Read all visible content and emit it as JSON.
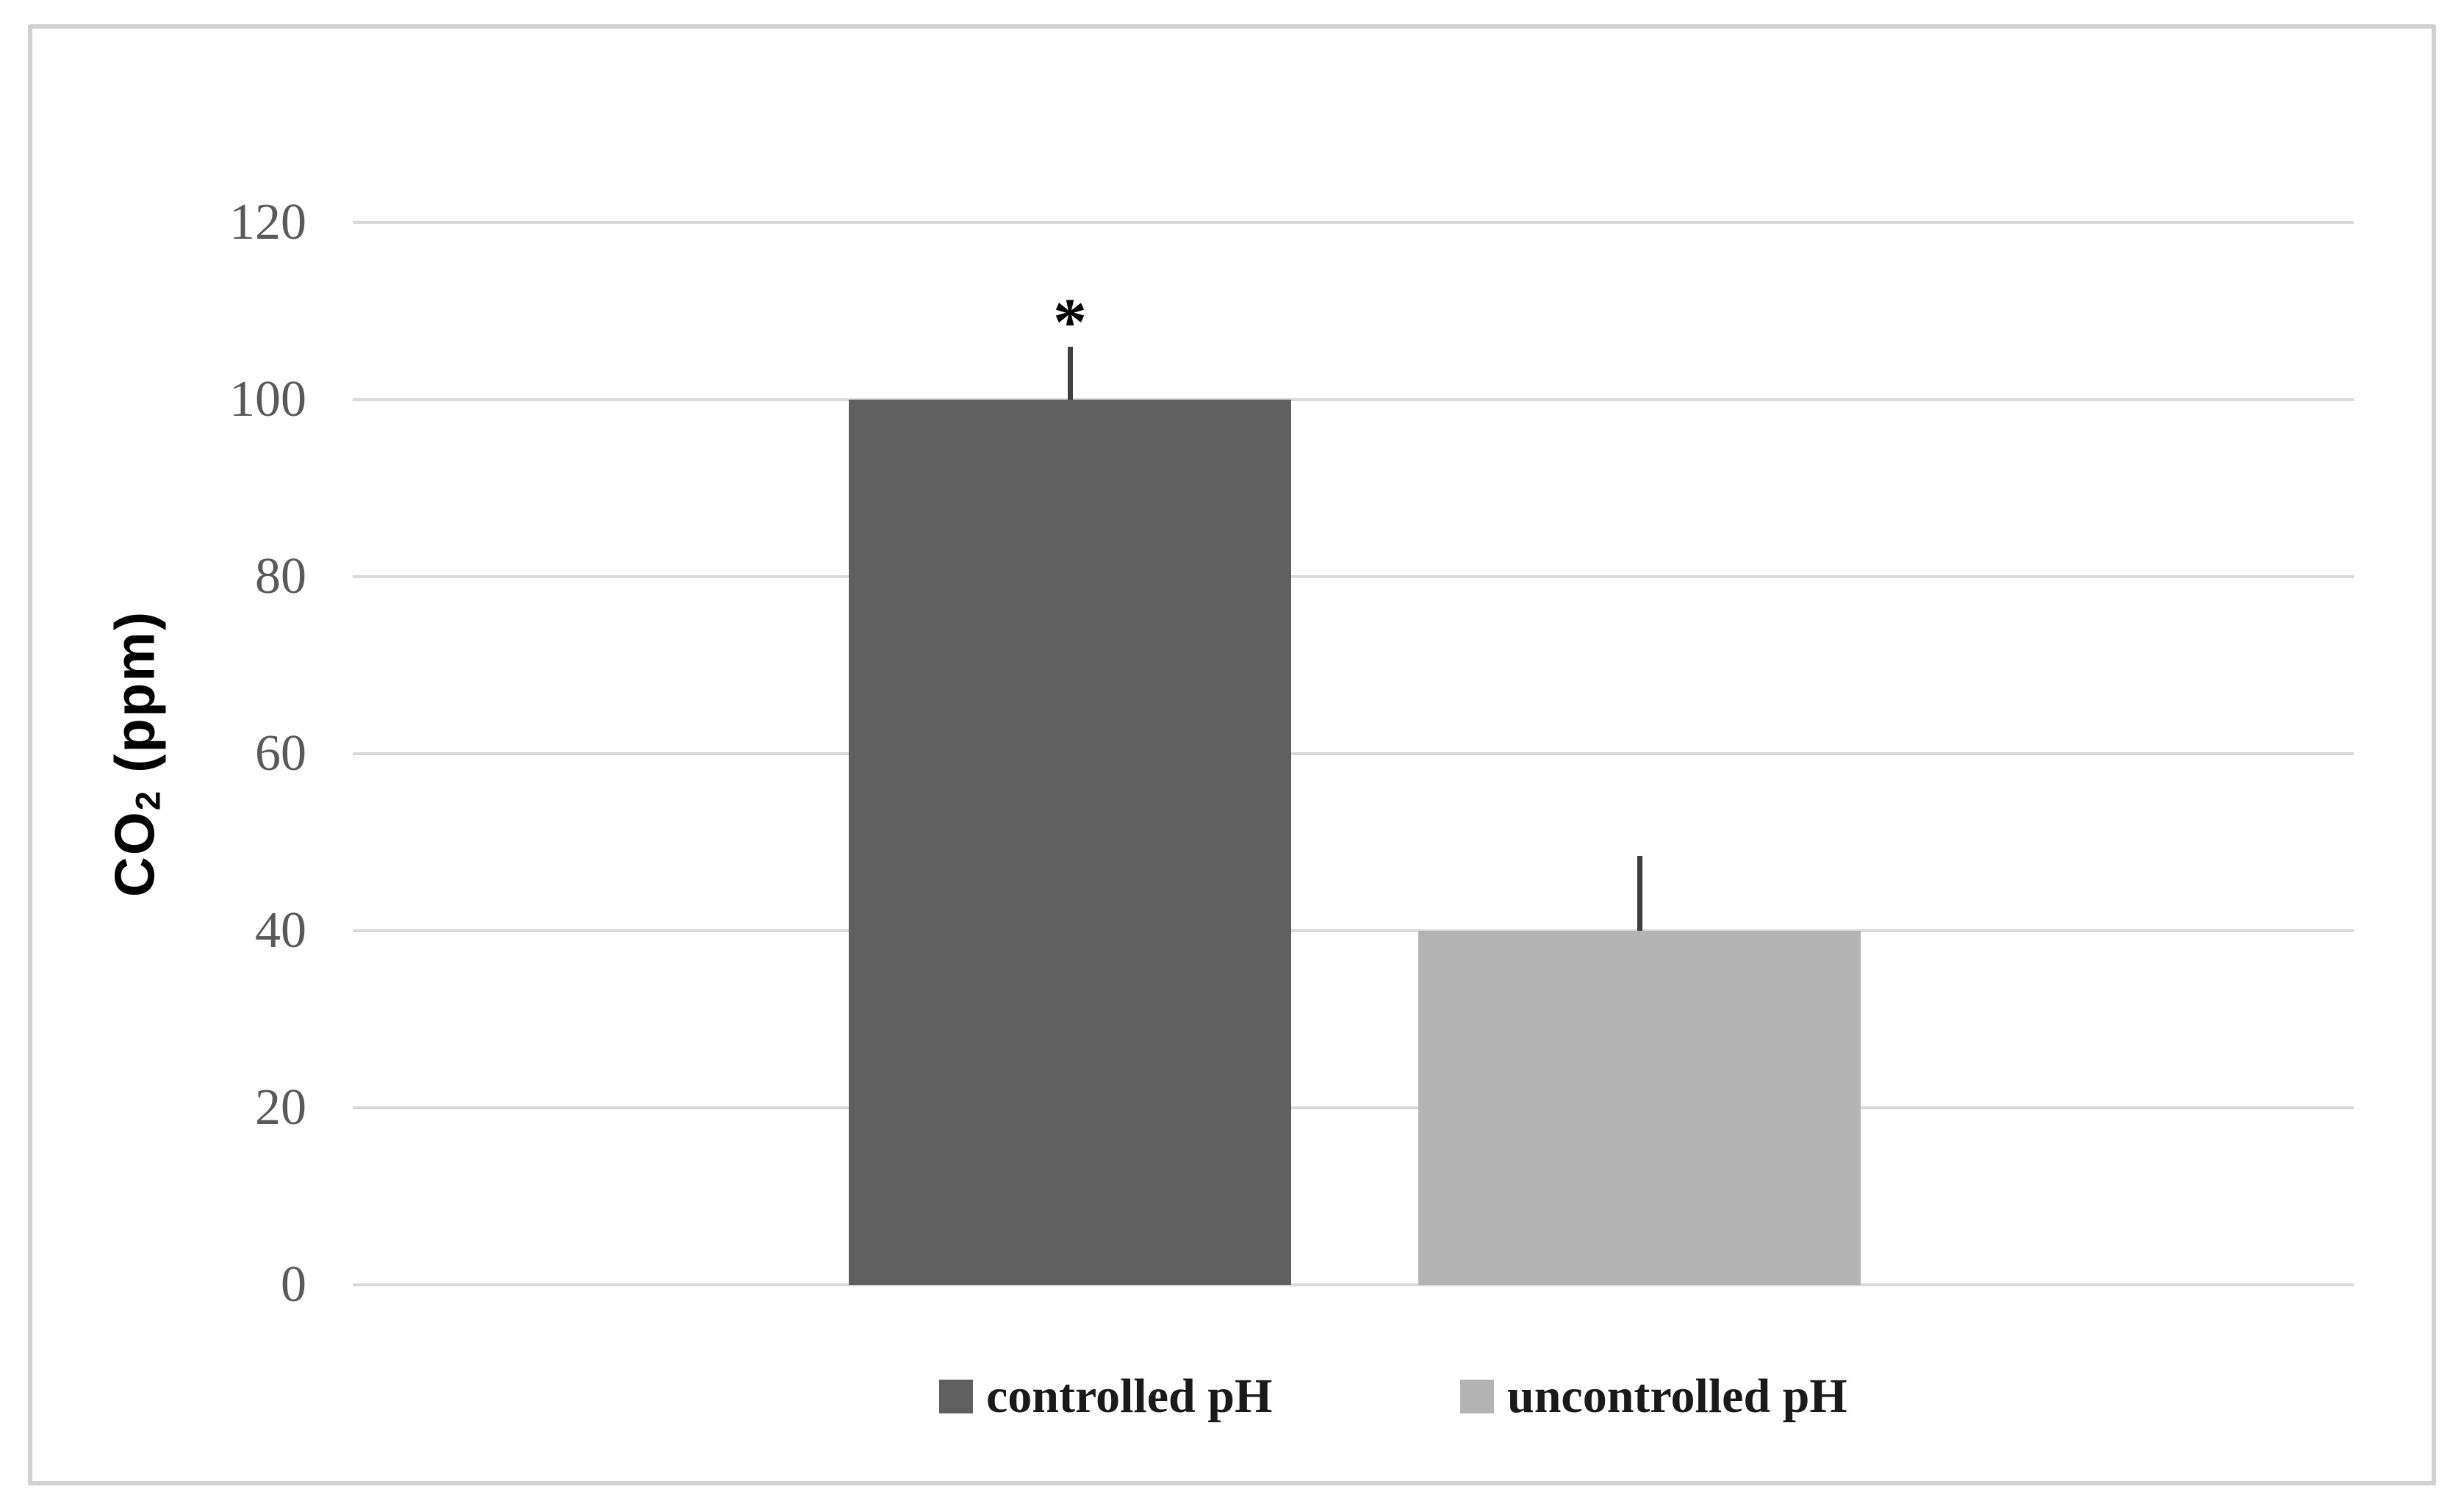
{
  "y_axis": {
    "prefix": "CO",
    "subscript": "2",
    "suffix": " (ppm)"
  },
  "colors": {
    "background": "#FFFFFF",
    "frame_border": "#D1D1D1",
    "grid": "#D9D9D9",
    "tick_text": "#595959",
    "axis_title_text": "#000000",
    "error_bar": "#3F3F3F",
    "annotation_text": "#000000",
    "legend_text": "#1A1A1A"
  },
  "chart_data": {
    "type": "bar",
    "title": "",
    "categories": [
      ""
    ],
    "series": [
      {
        "name": "controlled pH",
        "values": [
          100
        ],
        "error_plus": [
          6
        ],
        "color": "#5F5F5F"
      },
      {
        "name": "uncontrolled pH",
        "values": [
          40
        ],
        "error_plus": [
          8.5
        ],
        "color": "#B3B3B3"
      }
    ],
    "xlabel": "",
    "ylabel": "CO₂ (ppm)",
    "ylim": [
      0,
      120
    ],
    "yticks": [
      0,
      20,
      40,
      60,
      80,
      100,
      120
    ],
    "grid": true,
    "legend_position": "bottom",
    "annotations": [
      {
        "text": "*",
        "series": "controlled pH"
      }
    ]
  }
}
